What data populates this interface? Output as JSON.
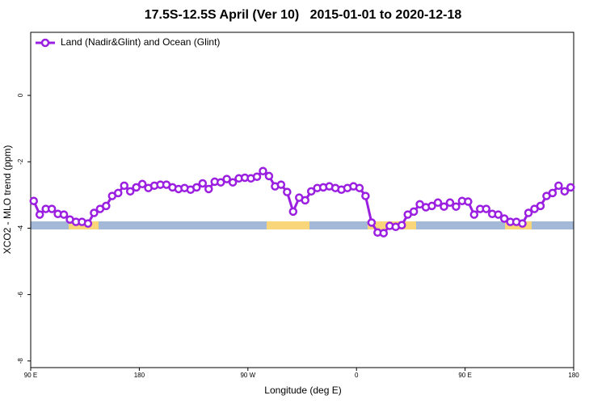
{
  "chart_data": {
    "type": "line",
    "title": "17.5S-12.5S April (Ver 10)   2015-01-01 to 2020-12-18",
    "xlabel": "Longitude (deg E)",
    "ylabel": "XCO2 - MLO trend (ppm)",
    "xlim": [
      90,
      540
    ],
    "ylim": [
      -8.2,
      1.9
    ],
    "xticks": [
      {
        "value": 90,
        "label": "90 E"
      },
      {
        "value": 180,
        "label": "180"
      },
      {
        "value": 270,
        "label": "90 W"
      },
      {
        "value": 360,
        "label": "0"
      },
      {
        "value": 450,
        "label": "90 E"
      },
      {
        "value": 540,
        "label": "180"
      }
    ],
    "yticks": [
      0,
      -2,
      -4,
      -6,
      -8
    ],
    "legend": "top-left",
    "x": [
      92.5,
      97.5,
      102.5,
      107.5,
      112.5,
      117.5,
      122.5,
      127.5,
      132.5,
      137.5,
      142.5,
      147.5,
      152.5,
      157.5,
      162.5,
      167.5,
      172.5,
      177.5,
      182.5,
      187.5,
      192.5,
      197.5,
      202.5,
      207.5,
      212.5,
      217.5,
      222.5,
      227.5,
      232.5,
      237.5,
      242.5,
      247.5,
      252.5,
      257.5,
      262.5,
      267.5,
      272.5,
      277.5,
      282.5,
      287.5,
      292.5,
      297.5,
      302.5,
      307.5,
      312.5,
      317.5,
      322.5,
      327.5,
      332.5,
      337.5,
      342.5,
      347.5,
      352.5,
      357.5,
      362.5,
      367.5,
      372.5,
      377.5,
      382.5,
      387.5,
      392.5,
      397.5,
      402.5,
      407.5,
      412.5,
      417.5,
      422.5,
      427.5,
      432.5,
      437.5,
      442.5,
      447.5,
      452.5,
      457.5,
      462.5,
      467.5,
      472.5,
      477.5,
      482.5,
      487.5,
      492.5,
      497.5,
      502.5,
      507.5,
      512.5,
      517.5,
      522.5,
      527.5,
      532.5,
      537.5
    ],
    "series": [
      {
        "name": "Land (Nadir&Glint) and Ocean (Glint)",
        "color": "#9b1fe0",
        "values": [
          -3.18,
          -3.59,
          -3.42,
          -3.42,
          -3.57,
          -3.59,
          -3.74,
          -3.81,
          -3.81,
          -3.86,
          -3.54,
          -3.42,
          -3.33,
          -3.03,
          -2.94,
          -2.72,
          -2.89,
          -2.77,
          -2.67,
          -2.79,
          -2.72,
          -2.69,
          -2.69,
          -2.77,
          -2.82,
          -2.79,
          -2.84,
          -2.77,
          -2.65,
          -2.82,
          -2.6,
          -2.62,
          -2.52,
          -2.62,
          -2.5,
          -2.48,
          -2.5,
          -2.45,
          -2.28,
          -2.43,
          -2.74,
          -2.69,
          -2.91,
          -3.5,
          -3.08,
          -3.16,
          -2.89,
          -2.79,
          -2.77,
          -2.74,
          -2.79,
          -2.84,
          -2.79,
          -2.74,
          -2.79,
          -3.03,
          -3.83,
          -4.13,
          -4.15,
          -3.93,
          -3.96,
          -3.91,
          -3.59,
          -3.5,
          -3.28,
          -3.37,
          -3.33,
          -3.23,
          -3.35,
          -3.23,
          -3.35,
          -3.18,
          -3.2,
          -3.59,
          -3.42,
          -3.42,
          -3.57,
          -3.59,
          -3.71,
          -3.81,
          -3.81,
          -3.86,
          -3.54,
          -3.42,
          -3.33,
          -3.03,
          -2.94,
          -2.72,
          -2.89,
          -2.77
        ]
      }
    ]
  }
}
